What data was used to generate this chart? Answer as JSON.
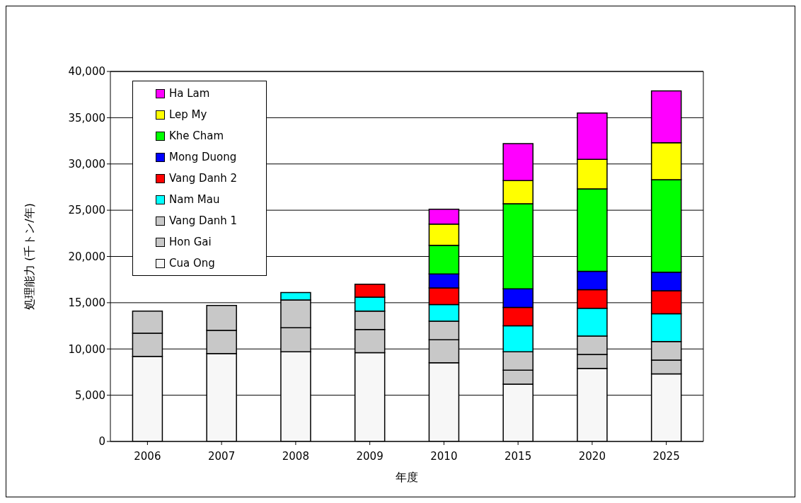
{
  "chart_data": {
    "type": "bar",
    "stacked": true,
    "xlabel": "年度",
    "ylabel": "処理能力 (千トン/年)",
    "categories": [
      "2006",
      "2007",
      "2008",
      "2009",
      "2010",
      "2015",
      "2020",
      "2025"
    ],
    "ylim": [
      0,
      40000
    ],
    "yticks": [
      {
        "value": 0,
        "label": "0"
      },
      {
        "value": 5000,
        "label": "5,000"
      },
      {
        "value": 10000,
        "label": "10,000"
      },
      {
        "value": 15000,
        "label": "15,000"
      },
      {
        "value": 20000,
        "label": "20,000"
      },
      {
        "value": 25000,
        "label": "25,000"
      },
      {
        "value": 30000,
        "label": "30,000"
      },
      {
        "value": 35000,
        "label": "35,000"
      },
      {
        "value": 40000,
        "label": "40,000"
      }
    ],
    "grid": "y",
    "legend": "top left",
    "series": [
      {
        "name": "Cua Ong",
        "color": "#f7f7f7",
        "values": [
          9200,
          9500,
          9700,
          9600,
          8500,
          6200,
          7900,
          7300
        ]
      },
      {
        "name": "Hon Gai",
        "color": "#c8c8c8",
        "values": [
          2500,
          2500,
          2600,
          2500,
          2500,
          1500,
          1500,
          1500
        ]
      },
      {
        "name": "Vang Danh 1",
        "color": "#c8c8c8",
        "values": [
          2400,
          2700,
          3000,
          2000,
          2000,
          2000,
          2000,
          2000
        ]
      },
      {
        "name": "Nam Mau",
        "color": "#00ffff",
        "values": [
          null,
          null,
          800,
          1500,
          1800,
          2800,
          3000,
          3000
        ]
      },
      {
        "name": "Vang Danh 2",
        "color": "#ff0000",
        "values": [
          null,
          null,
          null,
          1400,
          1800,
          2000,
          2000,
          2500
        ]
      },
      {
        "name": "Mong Duong",
        "color": "#0000ff",
        "values": [
          null,
          null,
          null,
          null,
          1500,
          2000,
          2000,
          2000
        ]
      },
      {
        "name": "Khe Cham",
        "color": "#00ff00",
        "values": [
          null,
          null,
          null,
          null,
          3100,
          9200,
          8900,
          10000
        ]
      },
      {
        "name": "Lep My",
        "color": "#ffff00",
        "values": [
          null,
          null,
          null,
          null,
          2300,
          2500,
          3200,
          4000
        ]
      },
      {
        "name": "Ha Lam",
        "color": "#ff00ff",
        "values": [
          null,
          null,
          null,
          null,
          1600,
          4000,
          5000,
          5600
        ]
      }
    ]
  }
}
